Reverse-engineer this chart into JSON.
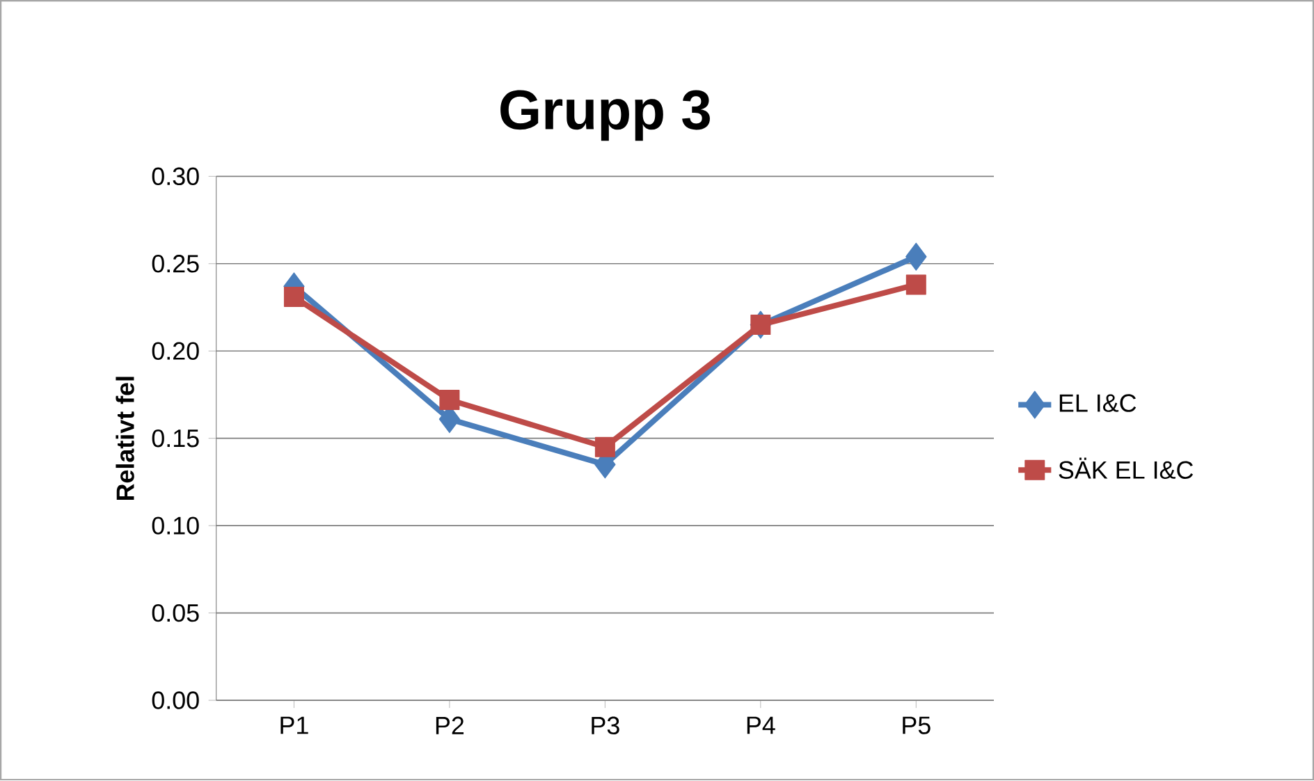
{
  "chart_data": {
    "type": "line",
    "title": "Grupp 3",
    "ylabel": "Relativt fel",
    "categories": [
      "P1",
      "P2",
      "P3",
      "P4",
      "P5"
    ],
    "series": [
      {
        "name": "EL I&C",
        "color": "#4a7ebb",
        "marker": "diamond",
        "values": [
          0.237,
          0.161,
          0.135,
          0.215,
          0.254
        ]
      },
      {
        "name": "SÄK EL I&C",
        "color": "#be4b48",
        "marker": "square",
        "values": [
          0.231,
          0.172,
          0.145,
          0.215,
          0.238
        ]
      }
    ],
    "ylim": [
      0,
      0.3
    ],
    "yticks": [
      {
        "value": 0,
        "label": "0.00"
      },
      {
        "value": 0.05,
        "label": "0.05"
      },
      {
        "value": 0.1,
        "label": "0.10"
      },
      {
        "value": 0.15,
        "label": "0.15"
      },
      {
        "value": 0.2,
        "label": "0.20"
      },
      {
        "value": 0.25,
        "label": "0.25"
      },
      {
        "value": 0.3,
        "label": "0.30"
      }
    ],
    "grid": "y",
    "legend": "right",
    "line_style": "solid"
  }
}
